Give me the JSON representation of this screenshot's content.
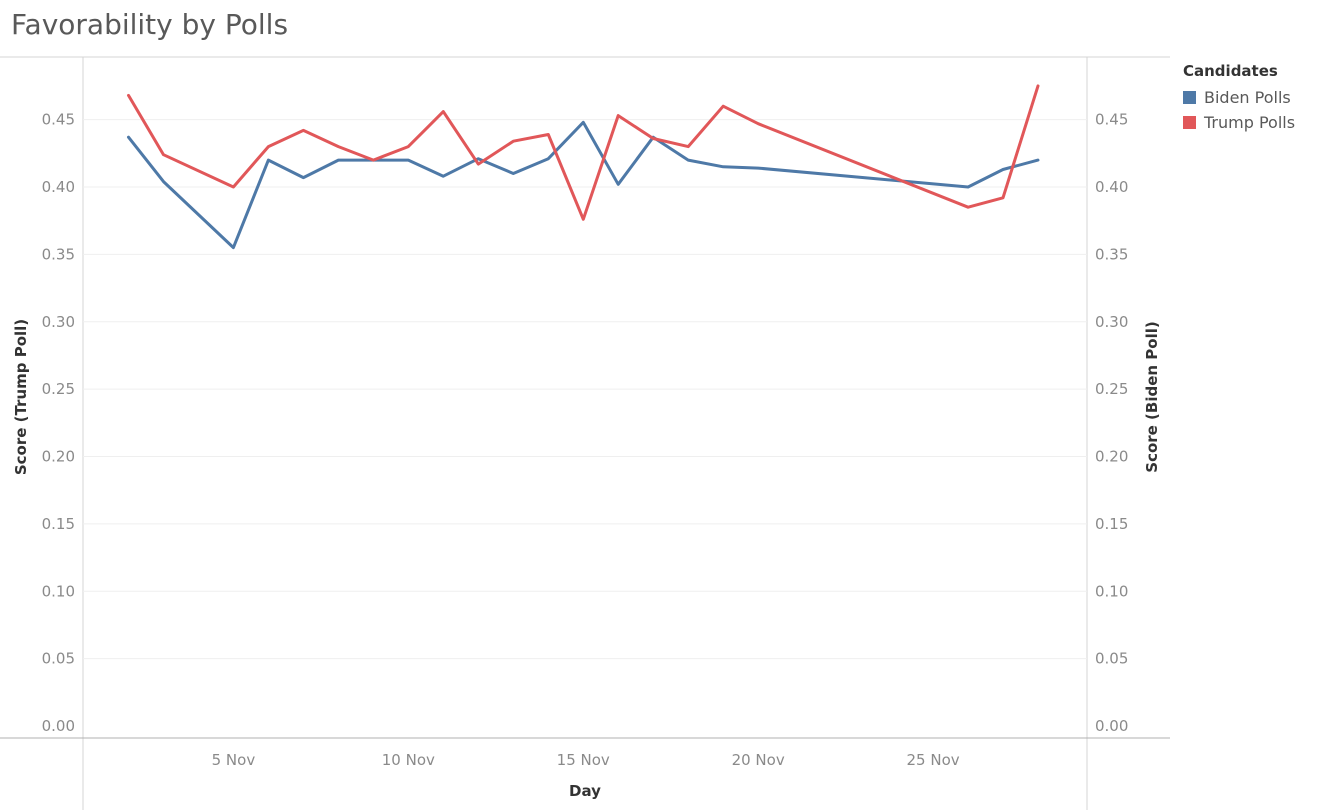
{
  "title": "Favorability by Polls",
  "legend": {
    "title": "Candidates",
    "items": [
      {
        "label": "Biden Polls",
        "color": "#4e79a7"
      },
      {
        "label": "Trump Polls",
        "color": "#e15759"
      }
    ]
  },
  "chart_data": {
    "type": "line",
    "title": "Favorability by Polls",
    "xlabel": "Day",
    "ylabel_left": "Score (Trump Poll)",
    "ylabel_right": "Score (Biden Poll)",
    "x_tick_labels": [
      "5 Nov",
      "10 Nov",
      "15 Nov",
      "20 Nov",
      "25 Nov"
    ],
    "x_tick_days": [
      5,
      10,
      15,
      20,
      25
    ],
    "xlim": [
      0.7,
      29.4
    ],
    "y_ticks": [
      "0.00",
      "0.05",
      "0.10",
      "0.15",
      "0.20",
      "0.25",
      "0.30",
      "0.35",
      "0.40",
      "0.45"
    ],
    "ylim": [
      0,
      0.495
    ],
    "grid": true,
    "legend_position": "right",
    "series": [
      {
        "name": "Biden Polls",
        "color": "#4e79a7",
        "axis": "right",
        "x": [
          2,
          3,
          5,
          6,
          7,
          8,
          9,
          10,
          11,
          12,
          13,
          14,
          15,
          16,
          17,
          18,
          19,
          20,
          26,
          27,
          28
        ],
        "y": [
          0.437,
          0.404,
          0.355,
          0.42,
          0.407,
          0.42,
          0.42,
          0.42,
          0.408,
          0.421,
          0.41,
          0.421,
          0.448,
          0.402,
          0.437,
          0.42,
          0.415,
          0.414,
          0.4,
          0.413,
          0.42
        ]
      },
      {
        "name": "Trump Polls",
        "color": "#e15759",
        "axis": "left",
        "x": [
          2,
          3,
          5,
          6,
          7,
          8,
          9,
          10,
          11,
          12,
          13,
          14,
          15,
          16,
          17,
          18,
          19,
          20,
          26,
          27,
          28
        ],
        "y": [
          0.468,
          0.424,
          0.4,
          0.43,
          0.442,
          0.43,
          0.42,
          0.43,
          0.456,
          0.417,
          0.434,
          0.439,
          0.376,
          0.453,
          0.436,
          0.43,
          0.46,
          0.447,
          0.385,
          0.392,
          0.475
        ]
      }
    ]
  }
}
